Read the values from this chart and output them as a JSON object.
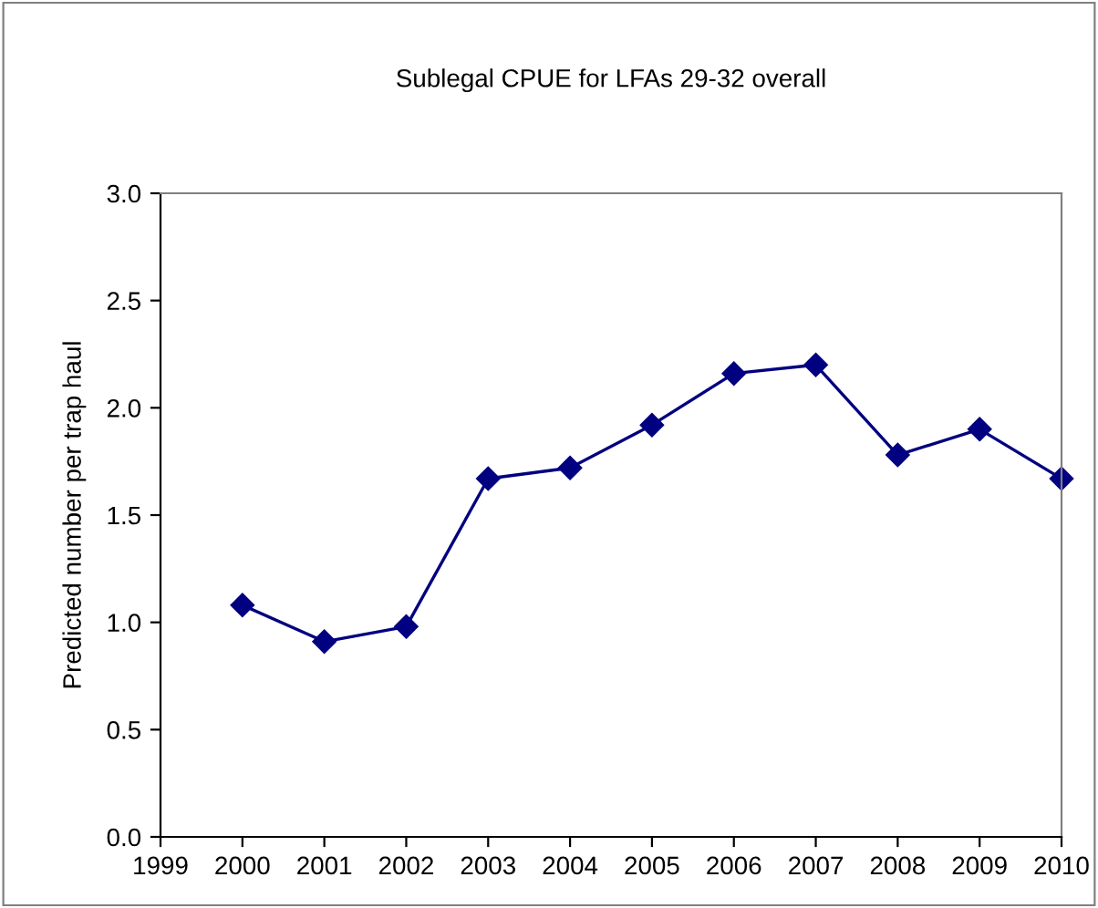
{
  "chart_data": {
    "type": "line",
    "title": "Sublegal CPUE for LFAs 29-32 overall",
    "ylabel": "Predicted number per trap haul",
    "x": [
      2000,
      2001,
      2002,
      2003,
      2004,
      2005,
      2006,
      2007,
      2008,
      2009,
      2010
    ],
    "series": [
      {
        "color": "#000080",
        "values": [
          1.08,
          0.91,
          0.98,
          1.67,
          1.72,
          1.92,
          2.16,
          2.2,
          1.78,
          1.9,
          1.67
        ]
      }
    ],
    "xlim": [
      1999,
      2010
    ],
    "xticks": [
      1999,
      2000,
      2001,
      2002,
      2003,
      2004,
      2005,
      2006,
      2007,
      2008,
      2009,
      2010
    ],
    "ylim": [
      0,
      3
    ],
    "yticks": [
      {
        "value": 0,
        "label": "0.0"
      },
      {
        "value": 0.5,
        "label": "0.5"
      },
      {
        "value": 1,
        "label": "1.0"
      },
      {
        "value": 1.5,
        "label": "1.5"
      },
      {
        "value": 2,
        "label": "2.0"
      },
      {
        "value": 2.5,
        "label": "2.5"
      },
      {
        "value": 3,
        "label": "3.0"
      }
    ],
    "grid": false,
    "legend": false,
    "marker": "diamond",
    "line_style": "solid"
  }
}
